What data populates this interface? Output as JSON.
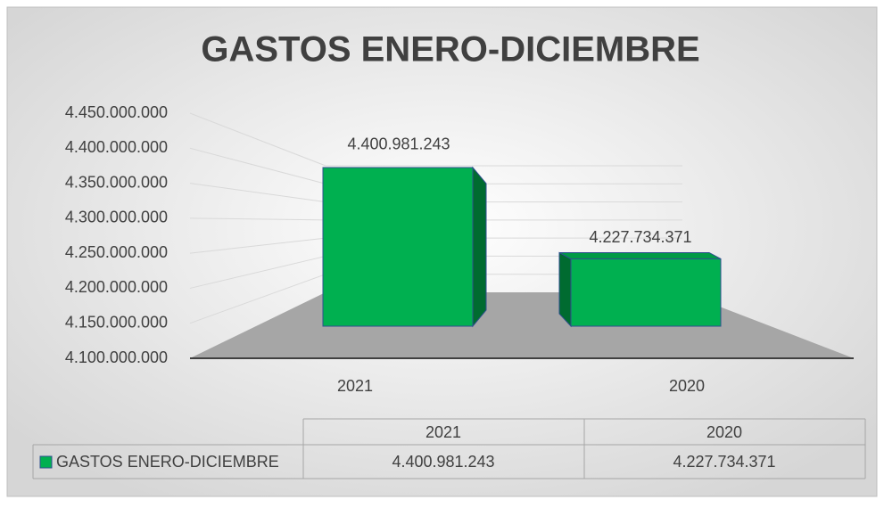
{
  "chart_data": {
    "type": "bar3d",
    "title": "GASTOS ENERO-DICIEMBRE",
    "categories": [
      "2021",
      "2020"
    ],
    "series": [
      {
        "name": "GASTOS ENERO-DICIEMBRE",
        "color": "#00b050",
        "values": [
          4400981243,
          4227734371
        ],
        "value_labels": [
          "4.400.981.243",
          "4.227.734.371"
        ]
      }
    ],
    "ylim": [
      4100000000,
      4450000000
    ],
    "yticks": [
      {
        "value": 4100000000,
        "label": "4.100.000.000"
      },
      {
        "value": 4150000000,
        "label": "4.150.000.000"
      },
      {
        "value": 4200000000,
        "label": "4.200.000.000"
      },
      {
        "value": 4250000000,
        "label": "4.250.000.000"
      },
      {
        "value": 4300000000,
        "label": "4.300.000.000"
      },
      {
        "value": 4350000000,
        "label": "4.350.000.000"
      },
      {
        "value": 4400000000,
        "label": "4.400.000.000"
      },
      {
        "value": 4450000000,
        "label": "4.450.000.000"
      }
    ],
    "grid": true,
    "data_table": true
  }
}
